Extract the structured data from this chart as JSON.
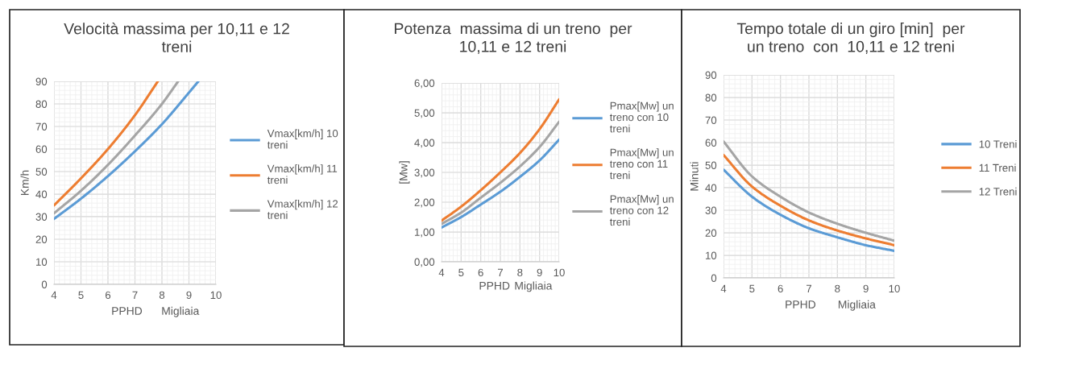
{
  "chart_data": [
    {
      "type": "line",
      "title": "Velocità massima per 10,11 e 12 treni",
      "xlabel": "PPHD",
      "ylabel": "Km/h",
      "annotations": [
        "Migliaia"
      ],
      "xlim": [
        4,
        10
      ],
      "xticks": [
        4,
        5,
        6,
        7,
        8,
        9,
        10
      ],
      "ylim": [
        0,
        90
      ],
      "yticks": [
        0,
        10,
        20,
        30,
        40,
        50,
        60,
        70,
        80,
        90
      ],
      "grid": true,
      "legend": "right",
      "marker": "none",
      "line_style": "solid",
      "series": [
        {
          "name": "Vmax[km/h] 10 treni",
          "color": "#5b9bd5",
          "x": [
            4,
            5,
            6,
            7,
            8,
            9,
            9.35
          ],
          "values": [
            29,
            38,
            48,
            59,
            71,
            85,
            90
          ]
        },
        {
          "name": "Vmax[km/h] 11 treni",
          "color": "#ed7d31",
          "x": [
            4,
            5,
            6,
            7,
            7.85
          ],
          "values": [
            35,
            47,
            60,
            75,
            90
          ]
        },
        {
          "name": "Vmax[km/h] 12 treni",
          "color": "#a5a5a5",
          "x": [
            4,
            5,
            6,
            7,
            8,
            8.6
          ],
          "values": [
            31.5,
            41.5,
            53,
            66,
            80,
            90
          ]
        }
      ]
    },
    {
      "type": "line",
      "title": "Potenza  massima di un treno  per 10,11 e 12 treni",
      "xlabel": "PPHD",
      "ylabel": "[Mw]",
      "annotations": [
        "Migliaia"
      ],
      "xlim": [
        4,
        10
      ],
      "xticks": [
        4,
        5,
        6,
        7,
        8,
        9,
        10
      ],
      "ylim": [
        0,
        6
      ],
      "yticks": [
        {
          "value": 0,
          "label": "0,00"
        },
        {
          "value": 1,
          "label": "1,00"
        },
        {
          "value": 2,
          "label": "2,00"
        },
        {
          "value": 3,
          "label": "3,00"
        },
        {
          "value": 4,
          "label": "4,00"
        },
        {
          "value": 5,
          "label": "5,00"
        },
        {
          "value": 6,
          "label": "6,00"
        }
      ],
      "grid": true,
      "legend": "right",
      "marker": "none",
      "line_style": "solid",
      "series": [
        {
          "name": "Pmax[Mw] un treno con 10 treni",
          "color": "#5b9bd5",
          "x": [
            4,
            5,
            6,
            7,
            8,
            9,
            10
          ],
          "values": [
            1.15,
            1.5,
            1.92,
            2.35,
            2.85,
            3.4,
            4.1
          ]
        },
        {
          "name": "Pmax[Mw] un treno con 11 treni",
          "color": "#ed7d31",
          "x": [
            4,
            5,
            6,
            7,
            8,
            9,
            10
          ],
          "values": [
            1.38,
            1.85,
            2.4,
            3.0,
            3.65,
            4.45,
            5.45
          ]
        },
        {
          "name": "Pmax[Mw] un treno con 12 treni",
          "color": "#a5a5a5",
          "x": [
            4,
            5,
            6,
            7,
            8,
            9,
            10
          ],
          "values": [
            1.27,
            1.65,
            2.15,
            2.65,
            3.2,
            3.85,
            4.7
          ]
        }
      ]
    },
    {
      "type": "line",
      "title": "Tempo totale di un giro [min]  per un treno  con  10,11 e 12 treni",
      "xlabel": "PPHD",
      "ylabel": "Minuti",
      "annotations": [
        "Migliaia"
      ],
      "xlim": [
        4,
        10
      ],
      "xticks": [
        4,
        5,
        6,
        7,
        8,
        9,
        10
      ],
      "ylim": [
        0,
        90
      ],
      "yticks": [
        0,
        10,
        20,
        30,
        40,
        50,
        60,
        70,
        80,
        90
      ],
      "grid": true,
      "legend": "right",
      "marker": "none",
      "line_style": "solid",
      "series": [
        {
          "name": "10 Treni",
          "color": "#5b9bd5",
          "x": [
            4,
            5,
            6,
            7,
            8,
            9,
            10
          ],
          "values": [
            48,
            36,
            28,
            22,
            18,
            14.5,
            12
          ]
        },
        {
          "name": "11 Treni",
          "color": "#ed7d31",
          "x": [
            4,
            5,
            6,
            7,
            8,
            9,
            10
          ],
          "values": [
            54.5,
            40.5,
            32,
            25.5,
            21,
            17.5,
            14.5
          ]
        },
        {
          "name": "12 Treni",
          "color": "#a5a5a5",
          "x": [
            4,
            5,
            6,
            7,
            8,
            9,
            10
          ],
          "values": [
            60.5,
            45,
            36,
            29,
            24,
            20,
            16.5
          ]
        }
      ]
    }
  ]
}
